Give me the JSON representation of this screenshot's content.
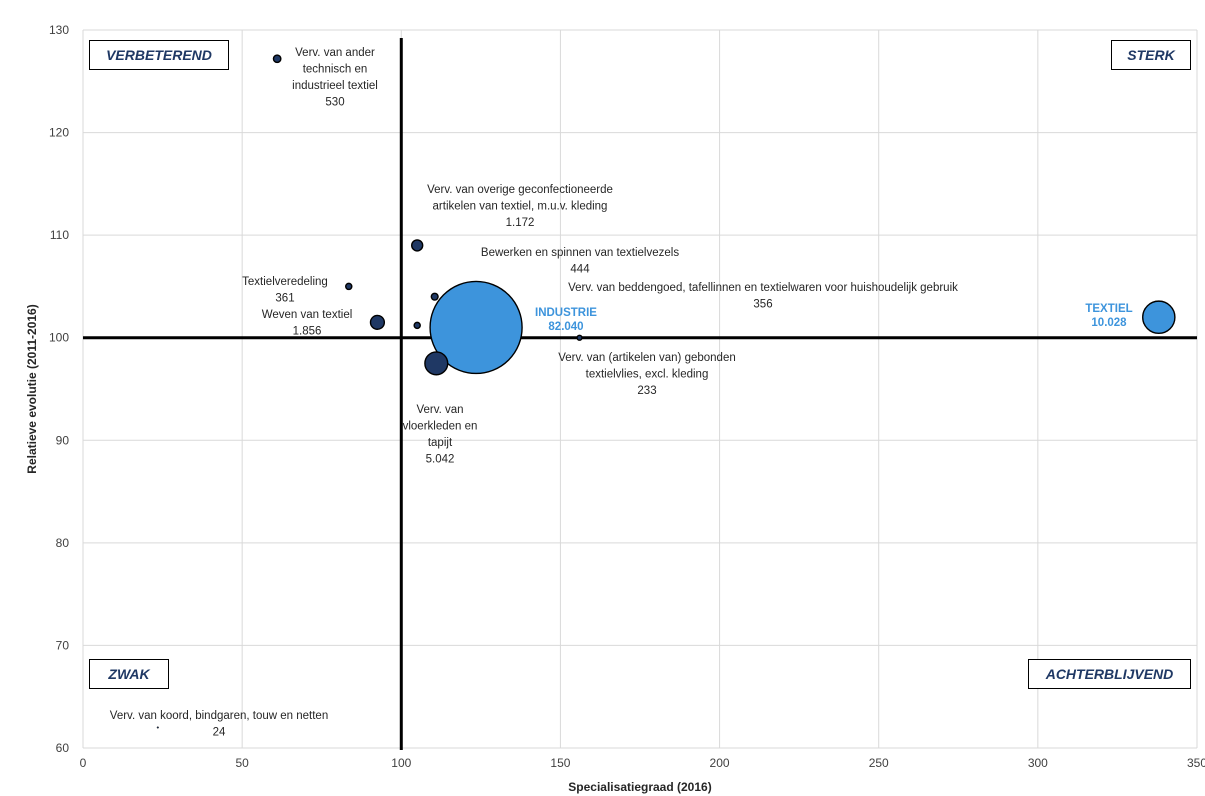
{
  "chart_data": {
    "type": "scatter",
    "title": "",
    "xlabel": "Specialisatiegraad  (2016)",
    "ylabel": "Relatieve evolutie (2011-2016)",
    "xlim": [
      0,
      350
    ],
    "ylim": [
      60,
      130
    ],
    "xticks": [
      "0",
      "50",
      "100",
      "150",
      "200",
      "250",
      "300",
      "350"
    ],
    "yticks": [
      "60",
      "70",
      "80",
      "90",
      "100",
      "110",
      "120",
      "130"
    ],
    "grid": true,
    "reference_lines": {
      "x": 100,
      "y": 100
    },
    "quadrants": {
      "top_left": "VERBETEREND",
      "top_right": "STERK",
      "bottom_left": "ZWAK",
      "bottom_right": "ACHTERBLIJVEND"
    },
    "colors": {
      "sector": "#1f3864",
      "highlight": "#3d94dc"
    },
    "points": [
      {
        "name": "Verv. van ander technisch en industrieel textiel",
        "x": 61,
        "y": 127.2,
        "size": 530,
        "label_lines": [
          "Verv. van ander",
          "technisch en",
          "industrieel textiel",
          "530"
        ],
        "highlight": false
      },
      {
        "name": "Verv. van overige geconfectioneerde artikelen van textiel, m.u.v. kleding",
        "x": 105,
        "y": 109,
        "size": 1172,
        "label_lines": [
          "Verv. van overige geconfectioneerde",
          "artikelen van textiel, m.u.v. kleding",
          "1.172"
        ],
        "highlight": false
      },
      {
        "name": "Bewerken en spinnen van textielvezels",
        "x": 110.5,
        "y": 104,
        "size": 444,
        "label_lines": [
          "Bewerken en spinnen van textielvezels",
          "444"
        ],
        "highlight": false
      },
      {
        "name": "Verv. van beddengoed, tafellinnen en textielwaren voor huishoudelijk gebruik",
        "x": 105,
        "y": 101.2,
        "size": 356,
        "label_lines": [
          "Verv. van beddengoed, tafellinnen en textielwaren voor huishoudelijk gebruik",
          "356"
        ],
        "highlight": false
      },
      {
        "name": "Textielveredeling",
        "x": 83.5,
        "y": 105,
        "size": 361,
        "label_lines": [
          "Textielveredeling",
          "361"
        ],
        "highlight": false
      },
      {
        "name": "Weven van textiel",
        "x": 92.5,
        "y": 101.5,
        "size": 1856,
        "label_lines": [
          "Weven van textiel",
          "1.856"
        ],
        "highlight": false
      },
      {
        "name": "Verv. van vloerkleden en tapijt",
        "x": 111,
        "y": 97.5,
        "size": 5042,
        "label_lines": [
          "Verv. van",
          "vloerkleden en",
          "tapijt",
          "5.042"
        ],
        "highlight": false
      },
      {
        "name": "Verv. van (artikelen van) gebonden textielvlies, excl. kleding",
        "x": 156,
        "y": 100,
        "size": 233,
        "label_lines": [
          "Verv. van (artikelen van) gebonden",
          "textielvlies, excl. kleding",
          "233"
        ],
        "highlight": false
      },
      {
        "name": "Verv. van koord, bindgaren, touw en netten",
        "x": 23.5,
        "y": 62,
        "size": 24,
        "label_lines": [
          "Verv. van koord, bindgaren, touw en netten",
          "24"
        ],
        "highlight": false
      },
      {
        "name": "INDUSTRIE",
        "x": 123.5,
        "y": 101,
        "size": 82040,
        "label_lines": [
          "INDUSTRIE",
          "82.040"
        ],
        "highlight": true
      },
      {
        "name": "TEXTIEL",
        "x": 338,
        "y": 102,
        "size": 10028,
        "label_lines": [
          "TEXTIEL",
          "10.028"
        ],
        "highlight": true
      }
    ]
  }
}
